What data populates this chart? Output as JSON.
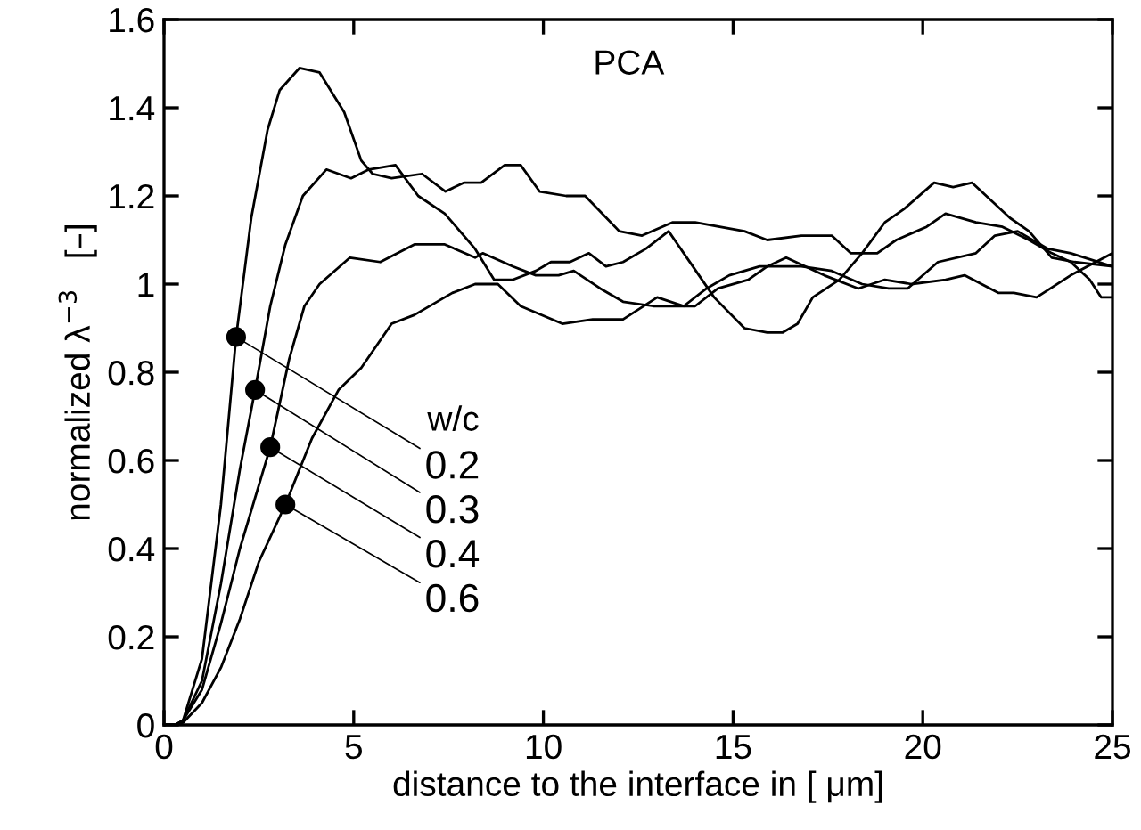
{
  "chart_data": {
    "type": "line",
    "title": "PCA",
    "xlabel": "distance to the interface in [ μm]",
    "ylabel": "normalized λ$^{−3}$   [–]",
    "legend_title": "w/c",
    "xlim": [
      0,
      25
    ],
    "xticks": [
      0,
      5,
      10,
      15,
      20,
      25
    ],
    "ylim": [
      0,
      1.6
    ],
    "yticks": [
      0,
      0.2,
      0.4,
      0.6,
      0.8,
      1,
      1.2,
      1.4,
      1.6
    ],
    "grid": false,
    "line_style": "solid",
    "series": [
      {
        "color": "#000000",
        "x": [
          0,
          0.3,
          0.5,
          1.0,
          1.5,
          1.9,
          2.3,
          2.73,
          3.05,
          3.57,
          4.1,
          4.75,
          5.2,
          5.5,
          6.0,
          6.8,
          7.42,
          7.9,
          8.36,
          8.98,
          9.4,
          9.9,
          10.6,
          11.1,
          12.0,
          12.6,
          13.4,
          14.0,
          15.3,
          15.9,
          16.8,
          17.6,
          18.1,
          18.8,
          19.3,
          20.1,
          20.6,
          21.4,
          22.1,
          22.8,
          23.4,
          23.9,
          24.4,
          24.7,
          25
        ],
        "values": [
          0,
          0,
          0.01,
          0.15,
          0.5,
          0.88,
          1.15,
          1.35,
          1.44,
          1.49,
          1.48,
          1.39,
          1.28,
          1.25,
          1.24,
          1.25,
          1.21,
          1.23,
          1.23,
          1.27,
          1.27,
          1.21,
          1.2,
          1.2,
          1.12,
          1.11,
          1.14,
          1.14,
          1.12,
          1.1,
          1.11,
          1.11,
          1.07,
          1.07,
          1.1,
          1.13,
          1.16,
          1.14,
          1.13,
          1.1,
          1.07,
          1.05,
          1.01,
          0.97,
          0.97
        ]
      },
      {
        "color": "#000000",
        "x": [
          0,
          0.3,
          0.5,
          1.0,
          1.5,
          2.0,
          2.4,
          2.8,
          3.2,
          3.66,
          4.28,
          4.93,
          5.4,
          6.1,
          6.7,
          7.4,
          8.2,
          8.7,
          9.2,
          9.8,
          10.2,
          10.7,
          11.2,
          11.65,
          12.1,
          12.7,
          13.3,
          13.7,
          14.5,
          15.3,
          15.9,
          16.3,
          16.7,
          17.1,
          17.8,
          18.4,
          19.0,
          19.5,
          20.3,
          20.8,
          21.3,
          22.3,
          22.8,
          23.4,
          24.0,
          25
        ],
        "values": [
          0,
          0,
          0.01,
          0.1,
          0.32,
          0.58,
          0.76,
          0.95,
          1.09,
          1.2,
          1.26,
          1.24,
          1.26,
          1.27,
          1.2,
          1.16,
          1.08,
          1.01,
          1.01,
          1.03,
          1.05,
          1.05,
          1.07,
          1.04,
          1.05,
          1.08,
          1.12,
          1.07,
          0.97,
          0.9,
          0.89,
          0.89,
          0.91,
          0.97,
          1.01,
          1.07,
          1.14,
          1.17,
          1.23,
          1.22,
          1.23,
          1.15,
          1.12,
          1.06,
          1.05,
          1.04
        ]
      },
      {
        "color": "#000000",
        "x": [
          0,
          0.3,
          0.5,
          1.0,
          1.5,
          2.0,
          2.8,
          3.3,
          3.7,
          4.1,
          4.9,
          5.7,
          6.6,
          7.4,
          8.2,
          8.4,
          9.2,
          9.8,
          10.4,
          10.8,
          11.5,
          12.1,
          12.9,
          14.0,
          14.6,
          15.4,
          15.9,
          16.4,
          17.4,
          18.3,
          19.0,
          19.7,
          20.6,
          21.1,
          22.0,
          22.4,
          23.0,
          23.9,
          25
        ],
        "values": [
          0,
          0,
          0.01,
          0.08,
          0.23,
          0.4,
          0.63,
          0.83,
          0.95,
          1.0,
          1.06,
          1.05,
          1.09,
          1.09,
          1.06,
          1.07,
          1.04,
          1.02,
          1.02,
          1.03,
          0.99,
          0.96,
          0.95,
          0.95,
          0.99,
          1.01,
          1.04,
          1.06,
          1.02,
          0.99,
          1.01,
          1.0,
          1.01,
          1.02,
          0.98,
          0.98,
          0.97,
          1.02,
          1.07
        ]
      },
      {
        "color": "#000000",
        "x": [
          0,
          0.3,
          0.5,
          1.0,
          1.5,
          2.0,
          2.5,
          3.2,
          3.9,
          4.6,
          5.2,
          6.0,
          6.6,
          7.6,
          8.2,
          8.8,
          9.4,
          10.5,
          11.3,
          12.1,
          13.0,
          13.7,
          14.3,
          14.9,
          15.7,
          16.8,
          17.6,
          18.4,
          19.1,
          19.6,
          20.4,
          21.4,
          21.9,
          22.5,
          23.3,
          23.9,
          25
        ],
        "values": [
          0,
          0,
          0.005,
          0.05,
          0.13,
          0.24,
          0.37,
          0.5,
          0.65,
          0.76,
          0.81,
          0.91,
          0.93,
          0.98,
          1.0,
          1.0,
          0.95,
          0.91,
          0.92,
          0.92,
          0.97,
          0.95,
          0.99,
          1.02,
          1.04,
          1.04,
          1.03,
          1.0,
          0.99,
          0.99,
          1.05,
          1.07,
          1.11,
          1.12,
          1.08,
          1.07,
          1.04
        ]
      }
    ],
    "annotations": [
      {
        "text": "0.2",
        "x": 1.9,
        "y": 0.88
      },
      {
        "text": "0.3",
        "x": 2.4,
        "y": 0.76
      },
      {
        "text": "0.4",
        "x": 2.8,
        "y": 0.63
      },
      {
        "text": "0.6",
        "x": 3.2,
        "y": 0.5
      }
    ]
  }
}
